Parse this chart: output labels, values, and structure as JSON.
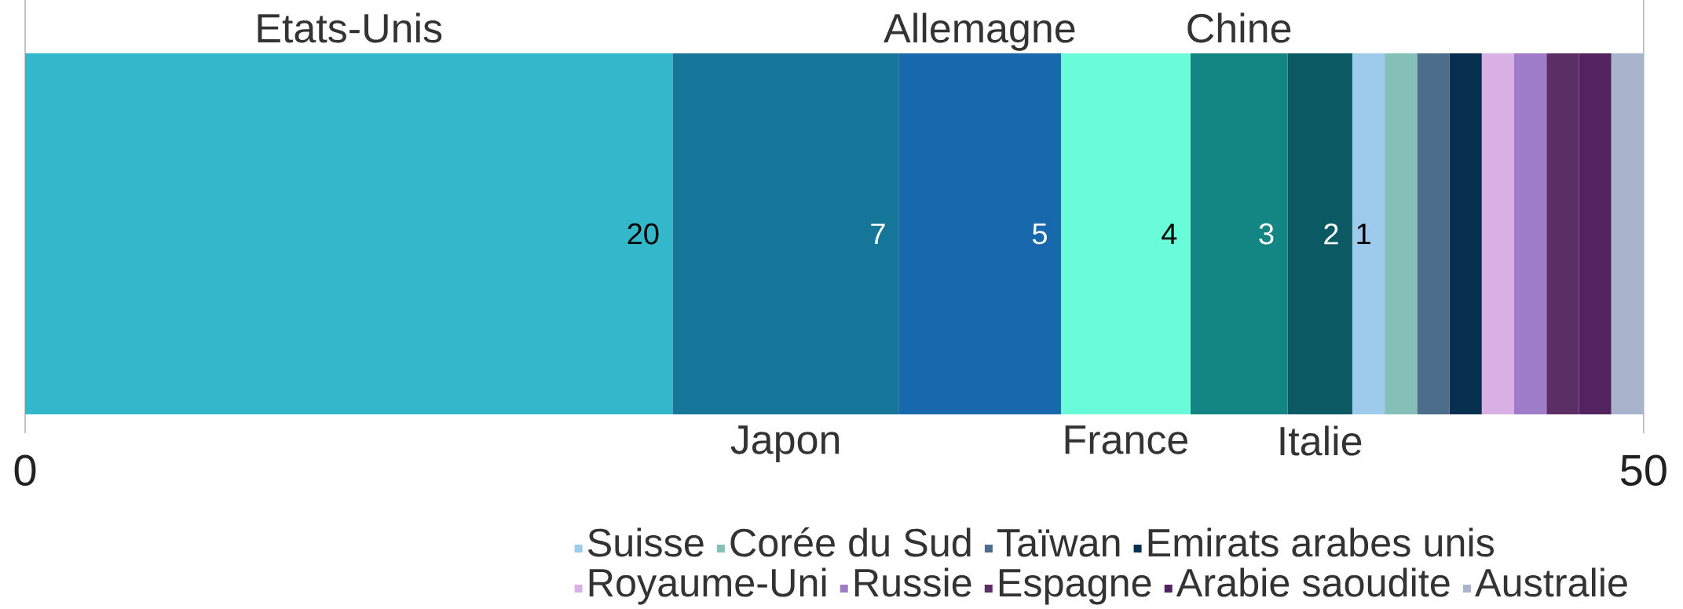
{
  "chart_data": {
    "type": "bar",
    "orientation": "horizontal",
    "stacked": true,
    "categories": [
      null
    ],
    "series": [
      {
        "name": "Etats-Unis",
        "color": "#32b8ca",
        "values": [
          20
        ],
        "value_labels": [
          "20"
        ]
      },
      {
        "name": "Japon",
        "color": "#167699",
        "values": [
          7
        ],
        "value_labels": [
          "7"
        ]
      },
      {
        "name": "Allemagne",
        "color": "#1868ae",
        "values": [
          5
        ],
        "value_labels": [
          "5"
        ]
      },
      {
        "name": "France",
        "color": "#68fcd8",
        "values": [
          4
        ],
        "value_labels": [
          "4"
        ]
      },
      {
        "name": "Chine",
        "color": "#138683",
        "values": [
          3
        ],
        "value_labels": [
          "3"
        ]
      },
      {
        "name": "Italie",
        "color": "#0b5962",
        "values": [
          2
        ],
        "value_labels": [
          "2"
        ]
      },
      {
        "name": "Suisse",
        "color": "#9ecbec",
        "values": [
          1
        ],
        "value_labels": [
          "1"
        ]
      },
      {
        "name": "Corée du Sud",
        "color": "#84c0b7",
        "values": [
          1
        ]
      },
      {
        "name": "Taïwan",
        "color": "#4d6d8c",
        "values": [
          1
        ]
      },
      {
        "name": "Emirats arabes unis",
        "color": "#073050",
        "values": [
          1
        ]
      },
      {
        "name": "Royaume-Uni",
        "color": "#d8b0e4",
        "values": [
          1
        ]
      },
      {
        "name": "Russie",
        "color": "#9f7cca",
        "values": [
          1
        ]
      },
      {
        "name": "Espagne",
        "color": "#5b2e66",
        "values": [
          1
        ]
      },
      {
        "name": "Arabie saoudite",
        "color": "#52235f",
        "values": [
          1
        ]
      },
      {
        "name": "Australie",
        "color": "#a7b4cc",
        "values": [
          1
        ]
      }
    ],
    "xlim": [
      0,
      50
    ],
    "xticks": [
      0,
      50
    ],
    "grid": "x",
    "legend": "bottom right"
  }
}
